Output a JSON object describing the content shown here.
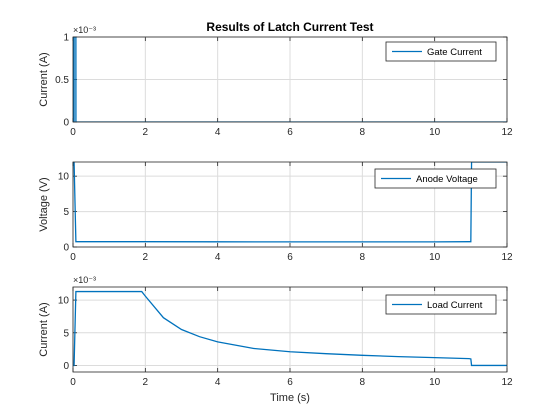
{
  "figure": {
    "title": "Results of Latch Current Test"
  },
  "chart_data": [
    {
      "type": "line",
      "title": "Results of Latch Current Test",
      "xlabel": "",
      "ylabel": "Current (A)",
      "exponent_label": "×10⁻³",
      "xlim": [
        0,
        12
      ],
      "ylim": [
        0,
        1
      ],
      "xticks": [
        "0",
        "2",
        "4",
        "6",
        "8",
        "10",
        "12"
      ],
      "yticks": [
        "0",
        "0.5",
        "1"
      ],
      "grid": true,
      "legend_position": "top-right",
      "series": [
        {
          "name": "Gate Current",
          "color": "#0072BD",
          "x": [
            0,
            0.001,
            0.02,
            0.021,
            0.03,
            0.031,
            0.08,
            0.081,
            12
          ],
          "y": [
            0,
            1,
            1,
            0,
            0,
            1,
            1,
            0,
            0
          ]
        }
      ]
    },
    {
      "type": "line",
      "title": "",
      "xlabel": "",
      "ylabel": "Voltage (V)",
      "xlim": [
        0,
        12
      ],
      "ylim": [
        0,
        12
      ],
      "xticks": [
        "0",
        "2",
        "4",
        "6",
        "8",
        "10",
        "12"
      ],
      "yticks": [
        "0",
        "5",
        "10"
      ],
      "grid": true,
      "legend_position": "top-right",
      "series": [
        {
          "name": "Anode Voltage",
          "color": "#0072BD",
          "x": [
            0,
            0.03,
            0.08,
            2,
            4,
            6,
            8,
            10,
            10.95,
            11.0,
            11.02,
            12
          ],
          "y": [
            12,
            12,
            0.75,
            0.75,
            0.73,
            0.72,
            0.72,
            0.72,
            0.75,
            0.75,
            12,
            12
          ]
        }
      ]
    },
    {
      "type": "line",
      "title": "",
      "xlabel": "Time (s)",
      "ylabel": "Current (A)",
      "exponent_label": "×10⁻³",
      "xlim": [
        0,
        12
      ],
      "ylim": [
        -1,
        12
      ],
      "xticks": [
        "0",
        "2",
        "4",
        "6",
        "8",
        "10",
        "12"
      ],
      "yticks": [
        "0",
        "5",
        "10"
      ],
      "grid": true,
      "legend_position": "top-right",
      "series": [
        {
          "name": "Load Current",
          "color": "#0072BD",
          "x": [
            0,
            0.03,
            0.08,
            1.9,
            2.0,
            2.5,
            3.0,
            3.5,
            4.0,
            5.0,
            6.0,
            7.0,
            8.0,
            9.0,
            10.0,
            10.95,
            11.0,
            11.02,
            12
          ],
          "y": [
            0,
            0,
            11.3,
            11.3,
            10.6,
            7.3,
            5.5,
            4.4,
            3.6,
            2.6,
            2.1,
            1.8,
            1.55,
            1.35,
            1.2,
            1.05,
            1.0,
            0,
            0
          ]
        }
      ]
    }
  ]
}
